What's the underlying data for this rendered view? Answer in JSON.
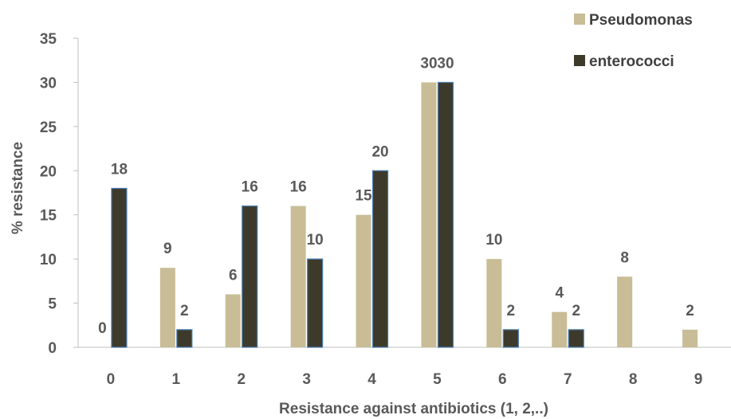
{
  "chart_data": {
    "type": "bar",
    "xlabel": "Resistance against antibiotics (1, 2,..)",
    "ylabel": "% resistance",
    "ylim": [
      0,
      35
    ],
    "yticks": [
      0,
      5,
      10,
      15,
      20,
      25,
      30,
      35
    ],
    "categories": [
      "0",
      "1",
      "2",
      "3",
      "4",
      "5",
      "6",
      "7",
      "8",
      "9"
    ],
    "series": [
      {
        "name": "Pseudomonas",
        "color": "#c8bd96",
        "values": [
          0,
          9,
          6,
          16,
          15,
          30,
          10,
          4,
          8,
          2
        ],
        "labels": [
          "0",
          "9",
          "6",
          "16",
          "15",
          "30",
          "10",
          "4",
          "8",
          "2"
        ]
      },
      {
        "name": "enterococci",
        "color": "#3d3a2c",
        "values": [
          18,
          2,
          16,
          10,
          20,
          30,
          2,
          2,
          null,
          null
        ],
        "labels": [
          "18",
          "2",
          "16",
          "10",
          "20",
          "30",
          "2",
          "2",
          "",
          ""
        ]
      }
    ],
    "grid": false,
    "legend_position": "top-right",
    "bar_edge_color": "#4a7fb5"
  }
}
